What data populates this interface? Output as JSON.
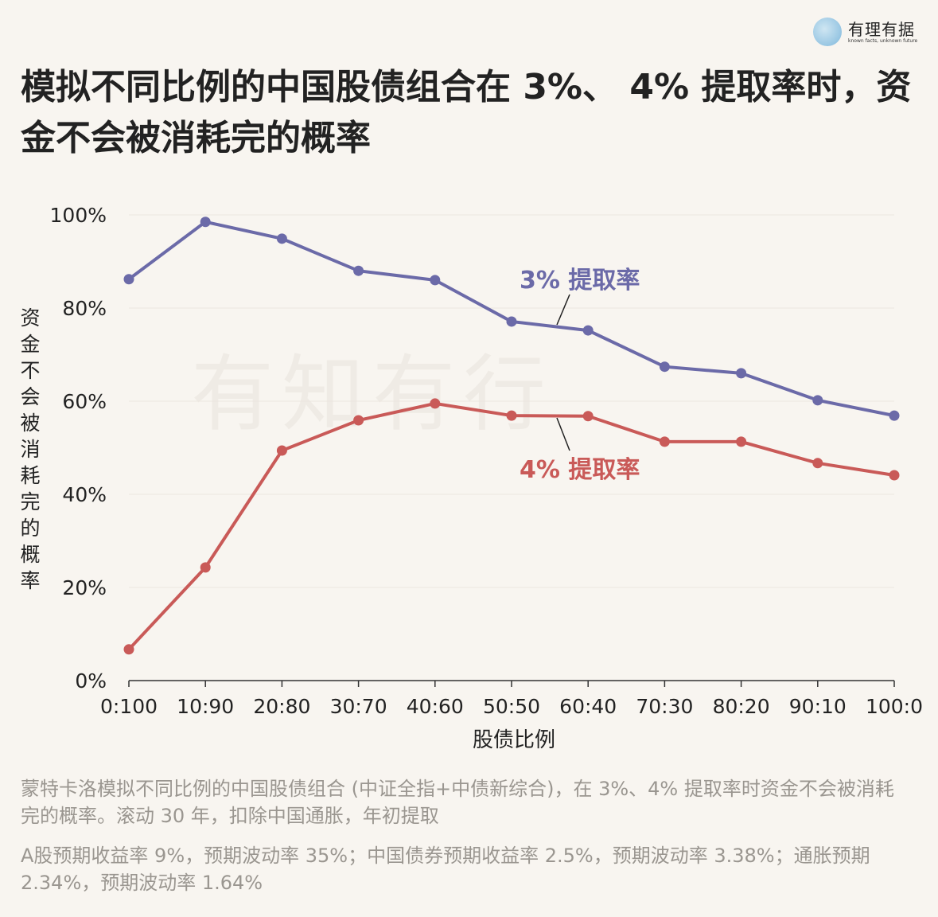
{
  "logo": {
    "name": "有理有据",
    "tagline": "known facts, unknown future"
  },
  "watermark": "有知有行",
  "title": "模拟不同比例的中国股债组合在 3%、 4% 提取率时，资金不会被消耗完的概率",
  "notes": [
    "蒙特卡洛模拟不同比例的中国股债组合 (中证全指+中债新综合)，在 3%、4% 提取率时资金不会被消耗完的概率。滚动 30 年，扣除中国通胀，年初提取",
    "A股预期收益率 9%，预期波动率 35%；中国债券预期收益率 2.5%，预期波动率 3.38%；通胀预期 2.34%，预期波动率 1.64%"
  ],
  "chart_data": {
    "type": "line",
    "xlabel": "股债比例",
    "ylabel": "资金不会被消耗完的概率",
    "categories": [
      "0:100",
      "10:90",
      "20:80",
      "30:70",
      "40:60",
      "50:50",
      "60:40",
      "70:30",
      "80:20",
      "90:10",
      "100:0"
    ],
    "yticks": [
      "0%",
      "20%",
      "40%",
      "60%",
      "80%",
      "100%"
    ],
    "ylim": [
      0,
      100
    ],
    "grid": true,
    "series": [
      {
        "name": "3% 提取率",
        "color": "#6b6aa8",
        "values": [
          86.2,
          98.5,
          94.9,
          88.0,
          86.0,
          77.1,
          75.2,
          67.4,
          66.0,
          60.2,
          56.9
        ]
      },
      {
        "name": "4% 提取率",
        "color": "#c95a58",
        "values": [
          6.7,
          24.3,
          49.4,
          55.9,
          59.5,
          56.9,
          56.8,
          51.3,
          51.3,
          46.7,
          44.1
        ]
      }
    ]
  }
}
